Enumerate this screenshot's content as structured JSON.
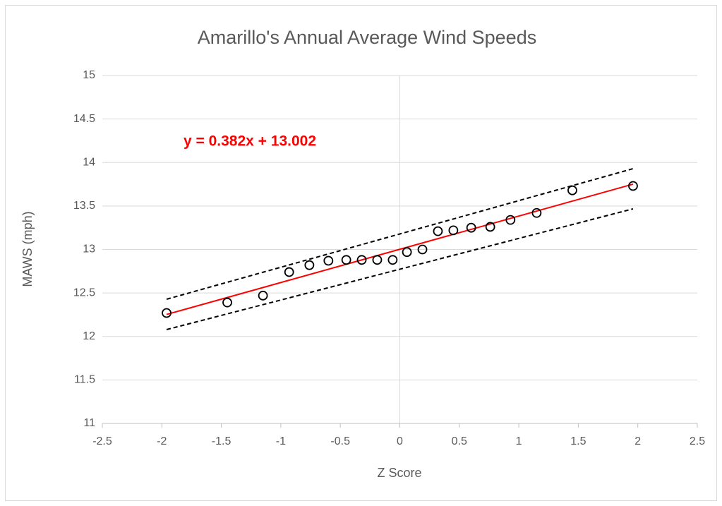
{
  "chart_data": {
    "type": "scatter",
    "title": "Amarillo's Annual Average Wind Speeds",
    "x_label": "Z Score",
    "y_label": "MAWS (mph)",
    "annotation": "y = 0.382x + 13.002",
    "x": [
      -1.96,
      -1.45,
      -1.15,
      -0.93,
      -0.76,
      -0.6,
      -0.45,
      -0.32,
      -0.19,
      -0.06,
      0.06,
      0.19,
      0.32,
      0.45,
      0.6,
      0.76,
      0.93,
      1.15,
      1.45,
      1.96
    ],
    "y": [
      12.27,
      12.39,
      12.47,
      12.74,
      12.82,
      12.87,
      12.88,
      12.88,
      12.88,
      12.88,
      12.97,
      13.0,
      13.21,
      13.22,
      13.25,
      13.26,
      13.34,
      13.42,
      13.68,
      13.73
    ],
    "marker_color": "#000000",
    "lines": [
      {
        "color": "#ff0000",
        "dashed": false,
        "x": [
          -1.96,
          1.96
        ],
        "y": [
          12.253,
          13.751
        ]
      },
      {
        "color": "#000000",
        "dashed": true,
        "x": [
          -1.96,
          1.96
        ],
        "y": [
          12.428,
          13.929
        ]
      },
      {
        "color": "#000000",
        "dashed": true,
        "x": [
          -1.96,
          1.96
        ],
        "y": [
          12.079,
          13.467
        ]
      }
    ],
    "xlim": [
      -2.5,
      2.5
    ],
    "xticks": [
      -2.5,
      -2,
      -1.5,
      -1,
      -0.5,
      0,
      0.5,
      1,
      1.5,
      2,
      2.5
    ],
    "ylim": [
      11,
      15
    ],
    "yticks": [
      11,
      11.5,
      12,
      12.5,
      13,
      13.5,
      14,
      14.5,
      15
    ],
    "grid": true
  }
}
